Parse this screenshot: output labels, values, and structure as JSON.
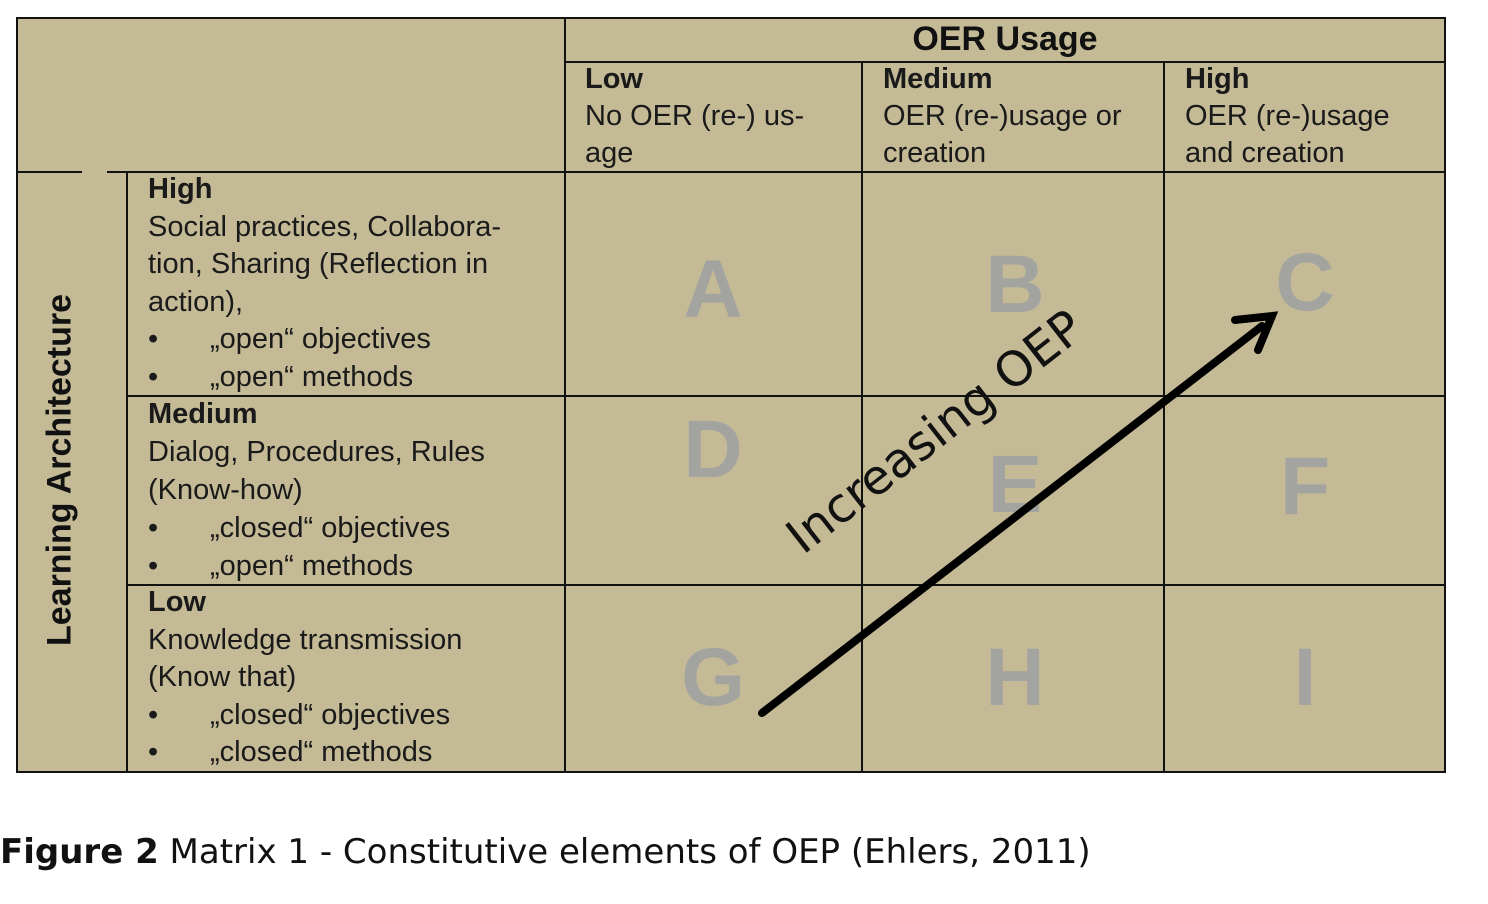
{
  "header": {
    "title": "OER Usage",
    "columns": [
      {
        "level": "Low",
        "desc": "No OER (re-) us-",
        "desc2": "age"
      },
      {
        "level": "Medium",
        "desc": "OER (re-)usage  or",
        "desc2": "creation"
      },
      {
        "level": "High",
        "desc": "OER (re-)usage",
        "desc2": "and creation"
      }
    ]
  },
  "row_axis_label": "Learning Architecture",
  "rows": [
    {
      "level": "High",
      "lines": [
        "Social practices, Collabora-",
        "tion, Sharing (Reflection in",
        "action),"
      ],
      "bullets": [
        "„open“ objectives",
        "„open“ methods"
      ]
    },
    {
      "level": "Medium",
      "lines": [
        "Dialog, Procedures, Rules",
        "(Know-how)"
      ],
      "bullets": [
        "„closed“ objectives",
        "„open“ methods"
      ]
    },
    {
      "level": "Low",
      "lines": [
        "Knowledge transmission",
        "(Know that)"
      ],
      "bullets": [
        "„closed“ objectives",
        "„closed“ methods"
      ]
    }
  ],
  "cells": [
    "A",
    "B",
    "C",
    "D",
    "E",
    "F",
    "G",
    "H",
    "I"
  ],
  "arrow_label": "Increasing OEP",
  "caption": {
    "label": "Figure 2",
    "text": " Matrix 1 - Constitutive elements of OEP (Ehlers, 2011)"
  },
  "colors": {
    "background": "#c4bb96",
    "cell_letter": "#a3a39f",
    "lines": "#111111"
  }
}
